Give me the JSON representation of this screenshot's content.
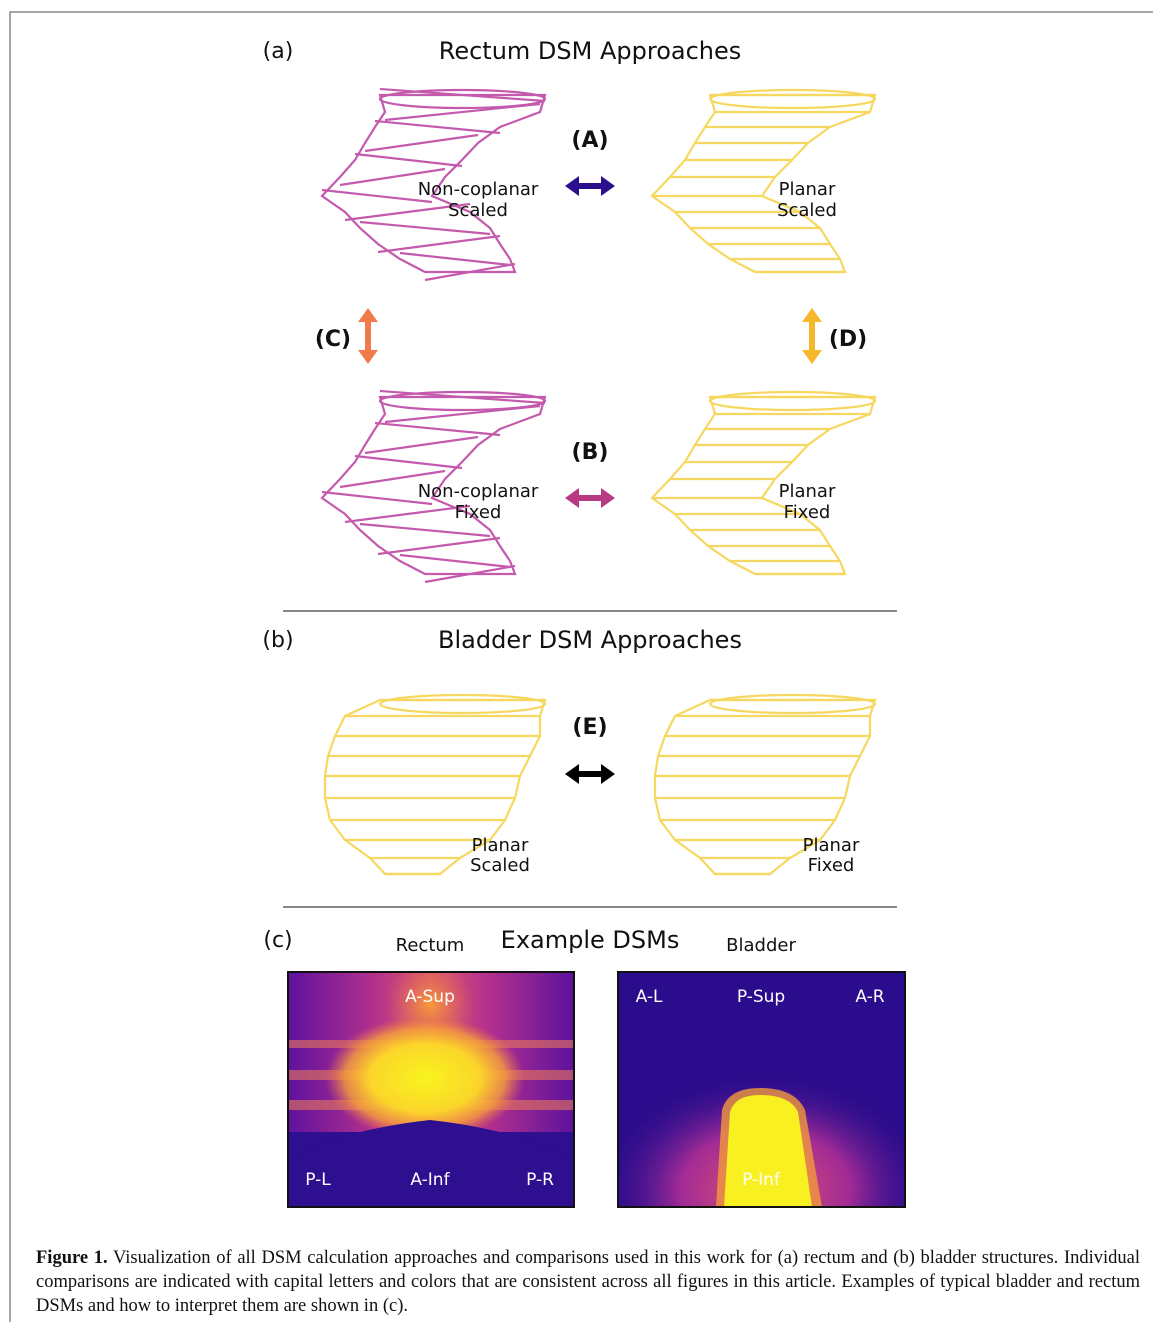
{
  "panel_a": {
    "label": "(a)",
    "title": "Rectum DSM Approaches",
    "shapes": [
      {
        "line1": "Non-coplanar",
        "line2": "Scaled"
      },
      {
        "line1": "Planar",
        "line2": "Scaled"
      },
      {
        "line1": "Non-coplanar",
        "line2": "Fixed"
      },
      {
        "line1": "Planar",
        "line2": "Fixed"
      }
    ],
    "comparisons": [
      "(A)",
      "(B)",
      "(C)",
      "(D)"
    ]
  },
  "panel_b": {
    "label": "(b)",
    "title": "Bladder DSM Approaches",
    "shapes": [
      {
        "line1": "Planar",
        "line2": "Scaled"
      },
      {
        "line1": "Planar",
        "line2": "Fixed"
      }
    ],
    "comparisons": [
      "(E)"
    ]
  },
  "panel_c": {
    "label": "(c)",
    "title": "Example DSMs",
    "maps": [
      {
        "name": "Rectum",
        "labels": [
          "A-Sup",
          "P-L",
          "A-Inf",
          "P-R"
        ]
      },
      {
        "name": "Bladder",
        "labels": [
          "A-L",
          "P-Sup",
          "A-R",
          "P-Inf"
        ]
      }
    ]
  },
  "caption": {
    "label": "Figure 1.",
    "text": "Visualization of all DSM calculation approaches and comparisons used in this work for (a) rectum and (b) bladder structures. Individual comparisons are indicated with capital letters and colors that are consistent across all figures in this article. Examples of typical bladder and rectum DSMs and how to interpret them are shown in (c)."
  }
}
